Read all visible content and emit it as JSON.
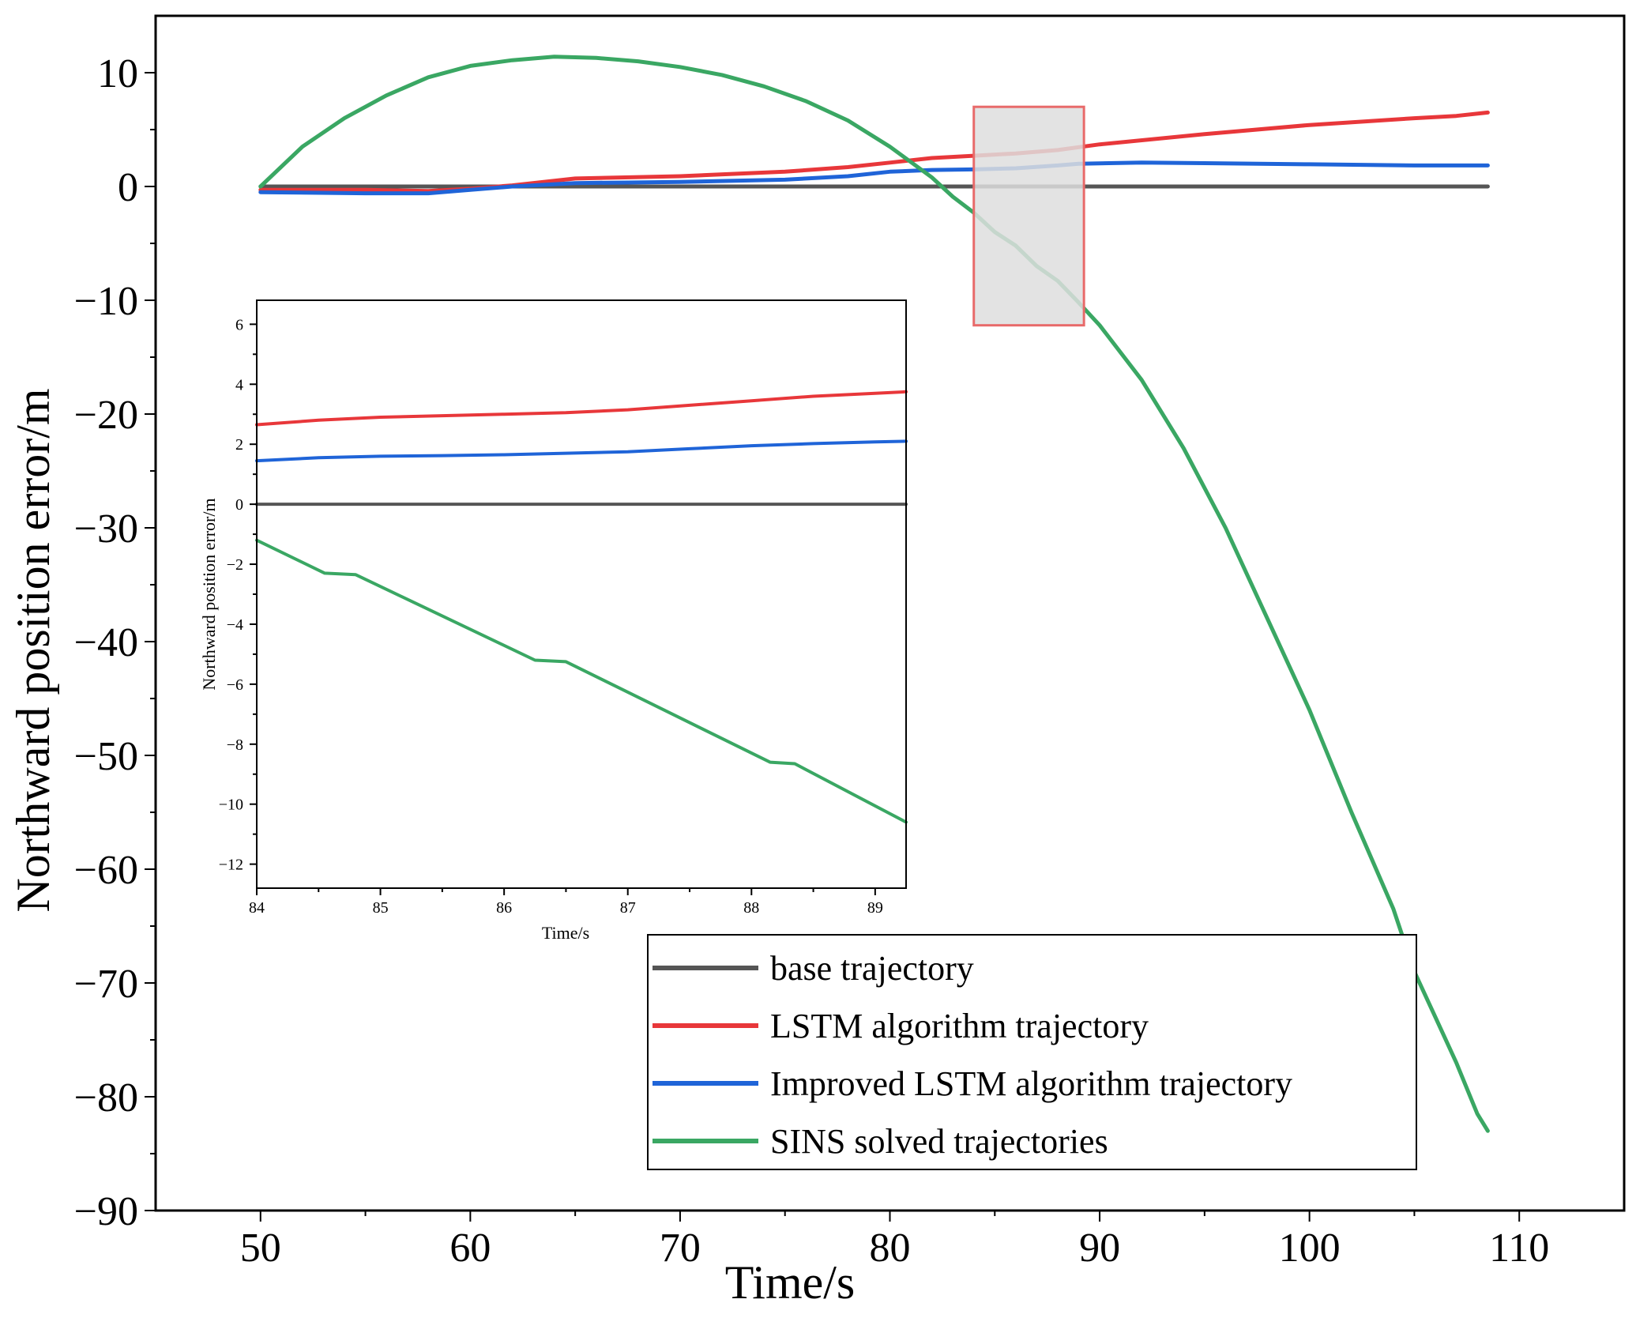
{
  "colors": {
    "base": "#555555",
    "lstm": "#e8373a",
    "improved": "#1f64d8",
    "sins": "#3aa763",
    "zoom_box_fill": "#dedede",
    "zoom_box_stroke": "#e86a6a"
  },
  "chart_data": [
    {
      "type": "line",
      "role": "main",
      "title": "",
      "xlabel": "Time/s",
      "ylabel": "Northward position error/m",
      "xlim": [
        45,
        115
      ],
      "ylim": [
        -90,
        15
      ],
      "xticks": [
        50,
        60,
        70,
        80,
        90,
        100,
        110
      ],
      "yticks": [
        10,
        0,
        -10,
        -20,
        -30,
        -40,
        -50,
        -60,
        -70,
        -80,
        -90
      ],
      "xtick_labels": [
        "50",
        "60",
        "70",
        "80",
        "90",
        "100",
        "110"
      ],
      "ytick_labels": [
        "10",
        "0",
        "−10",
        "−20",
        "−30",
        "−40",
        "−50",
        "−60",
        "−70",
        "−80",
        "−90"
      ],
      "grid": false,
      "series": [
        {
          "name": "base trajectory",
          "color_key": "base",
          "x": [
            50,
            108.5
          ],
          "y": [
            0,
            0
          ]
        },
        {
          "name": "LSTM algorithm trajectory",
          "color_key": "lstm",
          "x": [
            50,
            55,
            58,
            60,
            62,
            65,
            70,
            75,
            78,
            80,
            82,
            84,
            86,
            88,
            90,
            95,
            100,
            105,
            107,
            108.5
          ],
          "y": [
            -0.3,
            -0.3,
            -0.4,
            -0.2,
            0.1,
            0.7,
            0.9,
            1.3,
            1.7,
            2.1,
            2.5,
            2.7,
            2.9,
            3.2,
            3.7,
            4.6,
            5.4,
            6.0,
            6.2,
            6.5
          ]
        },
        {
          "name": "Improved LSTM algorithm trajectory",
          "color_key": "improved",
          "x": [
            50,
            55,
            58,
            60,
            62,
            65,
            70,
            75,
            78,
            80,
            82,
            84,
            86,
            88,
            89,
            92,
            95,
            100,
            105,
            108.5
          ],
          "y": [
            -0.5,
            -0.6,
            -0.6,
            -0.3,
            0.0,
            0.3,
            0.4,
            0.6,
            0.9,
            1.3,
            1.45,
            1.5,
            1.6,
            1.85,
            2.0,
            2.1,
            2.05,
            1.95,
            1.85,
            1.85
          ]
        },
        {
          "name": "SINS solved trajectories",
          "color_key": "sins",
          "x": [
            50,
            52,
            54,
            56,
            58,
            60,
            62,
            64,
            66,
            68,
            70,
            72,
            74,
            76,
            78,
            80,
            82,
            83,
            84,
            85,
            86,
            87,
            88,
            89,
            90,
            92,
            94,
            96,
            98,
            100,
            102,
            104,
            105,
            106,
            107,
            108,
            108.5
          ],
          "y": [
            0,
            3.5,
            6.0,
            8.0,
            9.6,
            10.6,
            11.1,
            11.4,
            11.3,
            11.0,
            10.5,
            9.8,
            8.8,
            7.5,
            5.8,
            3.5,
            0.8,
            -0.9,
            -2.3,
            -4.0,
            -5.2,
            -7.0,
            -8.3,
            -10.2,
            -12.2,
            -17.0,
            -23.0,
            -30.0,
            -38.0,
            -46.0,
            -55.0,
            -63.5,
            -69.0,
            -73.0,
            -77.0,
            -81.5,
            -83.0
          ]
        }
      ]
    },
    {
      "type": "line",
      "role": "inset",
      "title": "",
      "xlabel": "Time/s",
      "ylabel": "Northward position error/m",
      "xlim": [
        84,
        89.25
      ],
      "ylim": [
        -12.8,
        6.8
      ],
      "xticks": [
        84,
        85,
        86,
        87,
        88,
        89
      ],
      "yticks": [
        6,
        4,
        2,
        0,
        -2,
        -4,
        -6,
        -8,
        -10,
        -12
      ],
      "xtick_labels": [
        "84",
        "85",
        "86",
        "87",
        "88",
        "89"
      ],
      "ytick_labels": [
        "6",
        "4",
        "2",
        "0",
        "−2",
        "−4",
        "−6",
        "−8",
        "−10",
        "−12"
      ],
      "grid": false,
      "series": [
        {
          "name": "base trajectory",
          "color_key": "base",
          "x": [
            84,
            89.25
          ],
          "y": [
            0,
            0
          ]
        },
        {
          "name": "LSTM algorithm trajectory",
          "color_key": "lstm",
          "x": [
            84,
            84.5,
            85,
            85.5,
            86,
            86.5,
            87,
            87.5,
            88,
            88.5,
            89,
            89.25
          ],
          "y": [
            2.65,
            2.8,
            2.9,
            2.95,
            3.0,
            3.05,
            3.15,
            3.3,
            3.45,
            3.6,
            3.7,
            3.75
          ]
        },
        {
          "name": "Improved LSTM algorithm trajectory",
          "color_key": "improved",
          "x": [
            84,
            84.5,
            85,
            85.5,
            86,
            86.5,
            87,
            87.5,
            88,
            88.5,
            89,
            89.25
          ],
          "y": [
            1.45,
            1.55,
            1.6,
            1.62,
            1.65,
            1.7,
            1.75,
            1.85,
            1.95,
            2.02,
            2.08,
            2.1
          ]
        },
        {
          "name": "SINS solved trajectories",
          "color_key": "sins",
          "x": [
            84,
            84.55,
            84.8,
            86.25,
            86.5,
            88.15,
            88.35,
            89.25
          ],
          "y": [
            -1.2,
            -2.3,
            -2.35,
            -5.2,
            -5.25,
            -8.6,
            -8.65,
            -10.6
          ]
        }
      ]
    }
  ],
  "zoom_box": {
    "x_range": [
      84,
      89.25
    ],
    "y_range": [
      -12.2,
      7.0
    ]
  },
  "legend": {
    "placement": "lower-right",
    "items": [
      {
        "label": "base trajectory",
        "color_key": "base"
      },
      {
        "label": "LSTM algorithm trajectory",
        "color_key": "lstm"
      },
      {
        "label": "Improved LSTM algorithm trajectory",
        "color_key": "improved"
      },
      {
        "label": "SINS solved trajectories",
        "color_key": "sins"
      }
    ]
  }
}
